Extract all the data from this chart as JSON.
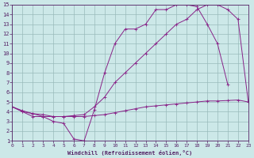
{
  "xlabel": "Windchill (Refroidissement éolien,°C)",
  "bg_color": "#cce8e8",
  "line_color": "#882288",
  "grid_color": "#99bbbb",
  "xmin": 0,
  "xmax": 23,
  "ymin": 1,
  "ymax": 15,
  "line1_x": [
    0,
    1,
    2,
    3,
    4,
    5,
    6,
    7,
    8,
    9,
    10,
    11,
    12,
    13,
    14,
    15,
    16,
    17,
    18,
    19,
    20,
    21
  ],
  "line1_y": [
    4.5,
    4.0,
    3.5,
    3.5,
    3.0,
    2.8,
    1.2,
    1.0,
    4.2,
    8.0,
    11.0,
    12.5,
    12.5,
    13.0,
    14.5,
    14.5,
    15.0,
    15.0,
    14.8,
    13.0,
    11.0,
    6.8
  ],
  "line2_x": [
    0,
    1,
    2,
    3,
    4,
    5,
    6,
    7,
    8,
    9,
    10,
    11,
    12,
    13,
    14,
    15,
    16,
    17,
    18,
    19,
    20,
    21,
    22,
    23
  ],
  "line2_y": [
    4.5,
    4.1,
    3.8,
    3.7,
    3.5,
    3.5,
    3.5,
    3.5,
    3.6,
    3.7,
    3.9,
    4.1,
    4.3,
    4.5,
    4.6,
    4.7,
    4.8,
    4.9,
    5.0,
    5.1,
    5.1,
    5.15,
    5.2,
    5.0
  ],
  "line3_x": [
    0,
    1,
    2,
    3,
    4,
    5,
    6,
    7,
    8,
    9,
    10,
    11,
    12,
    13,
    14,
    15,
    16,
    17,
    18,
    19,
    20,
    21,
    22,
    23
  ],
  "line3_y": [
    4.5,
    4.0,
    3.8,
    3.5,
    3.5,
    3.5,
    3.6,
    3.7,
    4.5,
    5.5,
    7.0,
    8.0,
    9.0,
    10.0,
    11.0,
    12.0,
    13.0,
    13.5,
    14.5,
    15.0,
    15.0,
    14.5,
    13.5,
    5.0
  ]
}
